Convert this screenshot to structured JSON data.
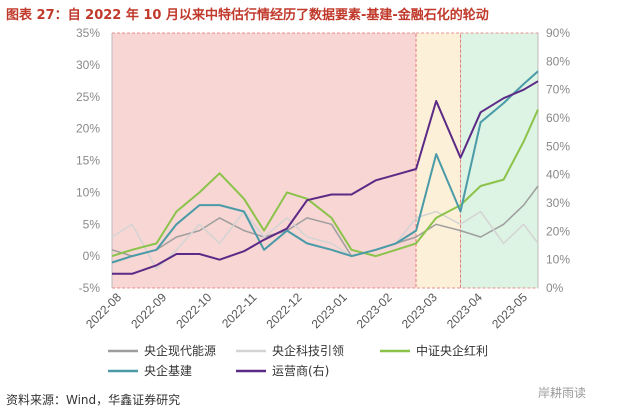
{
  "title": "图表 27：自 2022 年 10 月以来中特估行情经历了数据要素-基建-金融石化的轮动",
  "source": "资料来源：Wind，华鑫证券研究",
  "watermark": "岸耕雨读",
  "colors": {
    "title": "#c0392b",
    "shade_pink": "#f7d6d3",
    "shade_yellow": "#fdf0d8",
    "shade_green": "#ddf3e3",
    "band_border": "#e07070"
  },
  "chart_data": {
    "type": "line",
    "x": [
      "2022-08-01",
      "2022-08-15",
      "2022-09-01",
      "2022-09-15",
      "2022-10-01",
      "2022-10-15",
      "2022-11-01",
      "2022-11-15",
      "2022-12-01",
      "2022-12-15",
      "2023-01-01",
      "2023-01-15",
      "2023-02-01",
      "2023-02-15",
      "2023-03-01",
      "2023-03-15",
      "2023-04-01",
      "2023-04-15",
      "2023-05-01",
      "2023-05-15",
      "2023-05-25"
    ],
    "x_ticks": [
      "2022-08",
      "2022-09",
      "2022-10",
      "2022-11",
      "2022-12",
      "2023-01",
      "2023-02",
      "2023-03",
      "2023-04",
      "2023-05"
    ],
    "y_left": {
      "ticks": [
        "-5%",
        "0%",
        "5%",
        "10%",
        "15%",
        "20%",
        "25%",
        "30%",
        "35%"
      ],
      "range": [
        -5,
        35
      ]
    },
    "y_right": {
      "ticks": [
        "0%",
        "10%",
        "20%",
        "30%",
        "40%",
        "50%",
        "60%",
        "70%",
        "80%",
        "90%"
      ],
      "range": [
        0,
        90
      ]
    },
    "periods": [
      {
        "start": "2022-08-01",
        "end": "2023-03-01",
        "color": "#f7d6d3"
      },
      {
        "start": "2023-03-01",
        "end": "2023-04-01",
        "color": "#fdf0d8"
      },
      {
        "start": "2023-04-01",
        "end": "2023-05-25",
        "color": "#ddf3e3"
      }
    ],
    "series": [
      {
        "name": "央企现代能源",
        "axis": "left",
        "color": "#9e9e9e",
        "values": [
          1,
          0,
          1,
          3,
          4,
          6,
          4,
          3,
          4,
          6,
          5,
          0,
          1,
          2,
          3,
          5,
          4,
          3,
          5,
          8,
          11
        ]
      },
      {
        "name": "央企科技引领",
        "axis": "left",
        "color": "#d4d4d4",
        "values": [
          3,
          5,
          -2,
          1,
          5,
          2,
          7,
          3,
          6,
          3,
          2,
          0,
          1,
          2,
          6,
          7,
          5,
          7,
          2,
          5,
          2
        ]
      },
      {
        "name": "中证央企红利",
        "axis": "left",
        "color": "#8bc34a",
        "values": [
          0,
          1,
          2,
          7,
          10,
          13,
          9,
          4,
          10,
          9,
          6,
          1,
          0,
          1,
          2,
          6,
          8,
          11,
          12,
          18,
          23
        ]
      },
      {
        "name": "央企基建",
        "axis": "left",
        "color": "#4a9aa8",
        "values": [
          -1,
          0,
          1,
          5,
          8,
          8,
          7,
          1,
          4,
          2,
          1,
          0,
          1,
          2,
          4,
          16,
          7,
          21,
          24,
          27,
          29
        ]
      },
      {
        "name": "运营商(右)",
        "axis": "right",
        "color": "#5b2a86",
        "values": [
          5,
          5,
          8,
          12,
          12,
          10,
          13,
          17,
          21,
          31,
          33,
          33,
          38,
          40,
          42,
          66,
          46,
          62,
          67,
          70,
          73
        ]
      }
    ]
  }
}
